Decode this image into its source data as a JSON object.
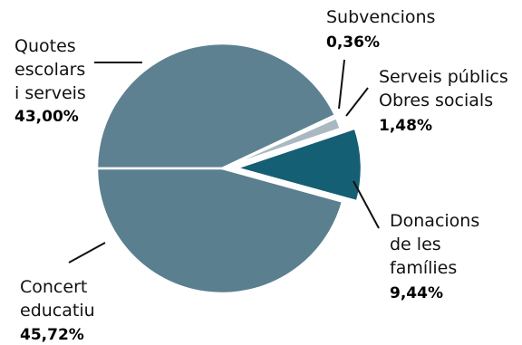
{
  "chart_data": {
    "type": "pie",
    "colors": {
      "quotes": "#5d8191",
      "subvencions": "#d8dde0",
      "serveis": "#aab8c2",
      "donacions": "#145f73",
      "concert": "#5a7f8f"
    },
    "slices": [
      {
        "key": "quotes",
        "lines": [
          "Quotes",
          "escolars",
          "i serveis"
        ],
        "value": 43.0,
        "pct_label": "43,00%"
      },
      {
        "key": "subvencions",
        "lines": [
          "Subvencions"
        ],
        "value": 0.36,
        "pct_label": "0,36%"
      },
      {
        "key": "serveis",
        "lines": [
          "Serveis públics",
          "Obres socials"
        ],
        "value": 1.48,
        "pct_label": "1,48%"
      },
      {
        "key": "donacions",
        "lines": [
          "Donacions",
          "de les",
          "famílies"
        ],
        "value": 9.44,
        "pct_label": "9,44%"
      },
      {
        "key": "concert",
        "lines": [
          "Concert",
          "educatiu"
        ],
        "value": 45.72,
        "pct_label": "45,72%"
      }
    ]
  }
}
